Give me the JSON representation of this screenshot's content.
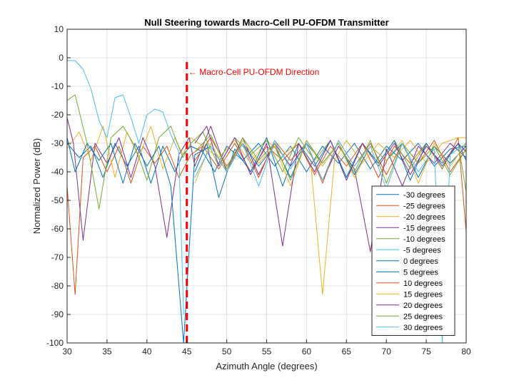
{
  "chart_data": {
    "type": "line",
    "title": "Null Steering towards Macro-Cell PU-OFDM Transmitter",
    "xlabel": "Azimuth Angle (degrees)",
    "ylabel": "Normalized Power (dB)",
    "xlim": [
      30,
      80
    ],
    "ylim": [
      -100,
      10
    ],
    "xticks": [
      30,
      35,
      40,
      45,
      50,
      55,
      60,
      65,
      70,
      75,
      80
    ],
    "yticks": [
      10,
      0,
      -10,
      -20,
      -30,
      -40,
      -50,
      -60,
      -70,
      -80,
      -90,
      -100
    ],
    "grid": true,
    "legend_position": "bottom-right",
    "null_marker": {
      "x": 45,
      "y_range": [
        -100,
        0
      ],
      "color": "#ff0000",
      "style": "dashed"
    },
    "annotation": {
      "text": "← Macro-Cell PU-OFDM Direction",
      "x": 45.2,
      "y": -5,
      "color": "#ff0000"
    },
    "series": [
      {
        "name": "-30 degrees",
        "color": "#0072BD",
        "x": [
          30,
          31.5,
          33,
          34.5,
          36,
          37.5,
          39,
          40.5,
          42,
          43.5,
          44.5,
          45.5,
          47,
          48.5,
          50,
          52,
          54,
          56,
          58,
          60,
          62,
          64,
          66,
          68,
          70,
          72,
          74,
          76,
          78,
          80
        ],
        "y": [
          -30,
          -35,
          -31,
          -42,
          -30,
          -38,
          -31,
          -44,
          -31,
          -40,
          -34,
          -31,
          -33,
          -40,
          -31,
          -36,
          -30,
          -38,
          -31,
          -40,
          -31,
          -37,
          -30,
          -39,
          -31,
          -36,
          -30,
          -38,
          -32,
          -31
        ]
      },
      {
        "name": "-25 degrees",
        "color": "#D95319",
        "x": [
          30,
          31,
          32,
          33.5,
          35,
          36.5,
          38,
          39.5,
          41,
          42.5,
          44,
          45.5,
          47,
          49,
          51,
          53,
          55,
          57,
          59,
          61,
          63,
          65,
          67,
          69,
          71,
          73,
          75,
          77,
          79,
          80
        ],
        "y": [
          -45,
          -83,
          -35,
          -31,
          -40,
          -31,
          -44,
          -31,
          -37,
          -31,
          -42,
          -34,
          -31,
          -39,
          -30,
          -40,
          -31,
          -36,
          -30,
          -41,
          -31,
          -38,
          -30,
          -42,
          -31,
          -37,
          -30,
          -39,
          -28,
          -61
        ]
      },
      {
        "name": "-20 degrees",
        "color": "#EDB120",
        "x": [
          30,
          31.5,
          33,
          34.5,
          36,
          37.5,
          39,
          40.5,
          42,
          43.5,
          44.5,
          45.5,
          47,
          49,
          51,
          53,
          55,
          57,
          59,
          60.5,
          62,
          63.5,
          65,
          67,
          69,
          71,
          73,
          75,
          77,
          79,
          80
        ],
        "y": [
          -32,
          -26,
          -36,
          -24,
          -42,
          -26,
          -35,
          -24,
          -39,
          -28,
          -34,
          -28,
          -31,
          -35,
          -29,
          -37,
          -29,
          -34,
          -30,
          -36,
          -83,
          -36,
          -29,
          -37,
          -30,
          -35,
          -29,
          -37,
          -30,
          -28,
          -28
        ]
      },
      {
        "name": "-15 degrees",
        "color": "#7E2F8E",
        "x": [
          30,
          30.8,
          32,
          33.5,
          35,
          36.5,
          38,
          39.5,
          41,
          42.5,
          44,
          45.3,
          46,
          48,
          50,
          52,
          54,
          56,
          58,
          60,
          62,
          64,
          66,
          68,
          70,
          72,
          74,
          76,
          78,
          80
        ],
        "y": [
          -21,
          -30,
          -64,
          -30,
          -37,
          -28,
          -42,
          -28,
          -38,
          -63,
          -34,
          -28,
          -38,
          -24,
          -40,
          -28,
          -41,
          -30,
          -38,
          -30,
          -43,
          -31,
          -39,
          -68,
          -32,
          -45,
          -31,
          -37,
          -30,
          -35
        ]
      },
      {
        "name": "-10 degrees",
        "color": "#77AC30",
        "x": [
          30,
          31,
          32.5,
          34,
          35.5,
          37,
          38.5,
          40,
          41.5,
          43,
          44.5,
          45.5,
          47,
          49,
          51,
          53,
          55,
          57,
          59,
          61,
          63,
          65,
          67,
          69,
          71,
          73,
          75,
          77,
          79,
          80
        ],
        "y": [
          -15,
          -13,
          -30,
          -53,
          -28,
          -24,
          -31,
          -43,
          -28,
          -24,
          -35,
          -30,
          -26,
          -38,
          -28,
          -34,
          -29,
          -40,
          -28,
          -36,
          -29,
          -42,
          -30,
          -37,
          -29,
          -39,
          -30,
          -38,
          -30,
          -47
        ]
      },
      {
        "name": "-5 degrees",
        "color": "#4DBEEE",
        "x": [
          30,
          31,
          32,
          33,
          34,
          35,
          36,
          37,
          38,
          39,
          40,
          41,
          42,
          43,
          44,
          44.6
        ],
        "y": [
          -1,
          -1,
          -4,
          -11,
          -22,
          -28,
          -14,
          -13,
          -21,
          -30,
          -20,
          -18,
          -19,
          -27,
          -33,
          -90
        ]
      },
      {
        "name": "0 degrees",
        "color": "#0072BD",
        "x": [
          30,
          31,
          32.5,
          34,
          35.5,
          37,
          38.5,
          40,
          41.5,
          43,
          44.6,
          46,
          48,
          50,
          52,
          54,
          56,
          58,
          60,
          62,
          64,
          66,
          68,
          70,
          72,
          74,
          76,
          78,
          80
        ],
        "y": [
          -28,
          -40,
          -30,
          -36,
          -30,
          -44,
          -30,
          -38,
          -31,
          -45,
          -100,
          -34,
          -31,
          -40,
          -30,
          -38,
          -31,
          -42,
          -30,
          -37,
          -30,
          -41,
          -31,
          -36,
          -30,
          -42,
          -31,
          -37,
          -31
        ]
      },
      {
        "name": "5 degrees",
        "color": "#0072BD",
        "x": [
          46,
          47.5,
          49,
          51,
          53,
          55,
          57,
          59,
          61,
          63,
          65,
          67,
          69,
          71,
          73,
          75,
          77,
          79,
          80
        ],
        "y": [
          -40,
          -30,
          -49,
          -32,
          -40,
          -28,
          -45,
          -30,
          -38,
          -29,
          -42,
          -30,
          -37,
          -29,
          -43,
          -30,
          -38,
          -30,
          -36
        ]
      },
      {
        "name": "10 degrees",
        "color": "#D95319",
        "x": [
          46,
          48,
          50,
          52,
          54,
          56,
          58,
          60,
          62,
          64,
          66,
          68,
          70,
          72,
          74,
          76,
          78,
          80
        ],
        "y": [
          -36,
          -28,
          -38,
          -30,
          -42,
          -29,
          -36,
          -30,
          -44,
          -29,
          -38,
          -30,
          -41,
          -30,
          -37,
          -29,
          -40,
          -32
        ]
      },
      {
        "name": "15 degrees",
        "color": "#EDB120",
        "x": [
          46,
          48,
          50,
          52,
          54,
          56,
          58,
          60,
          62,
          64,
          66,
          68,
          70,
          72,
          74,
          76,
          78,
          80
        ],
        "y": [
          -44,
          -30,
          -40,
          -29,
          -37,
          -31,
          -45,
          -29,
          -38,
          -30,
          -42,
          -31,
          -36,
          -29,
          -44,
          -30,
          -38,
          -30
        ]
      },
      {
        "name": "20 degrees",
        "color": "#7E2F8E",
        "x": [
          46,
          47.5,
          49,
          51,
          53,
          55,
          57,
          59,
          61,
          63,
          65,
          67,
          69,
          71,
          73,
          75,
          77,
          79,
          80
        ],
        "y": [
          -30,
          -24,
          -38,
          -28,
          -41,
          -30,
          -66,
          -30,
          -40,
          -29,
          -43,
          -30,
          -38,
          -30,
          -41,
          -31,
          -37,
          -30,
          -33
        ]
      },
      {
        "name": "25 degrees",
        "color": "#77AC30",
        "x": [
          46,
          48,
          50,
          52,
          54,
          56,
          58,
          60,
          62,
          64,
          66,
          68,
          70,
          72,
          74,
          76,
          78,
          80
        ],
        "y": [
          -33,
          -27,
          -39,
          -28,
          -36,
          -30,
          -43,
          -29,
          -37,
          -30,
          -40,
          -29,
          -44,
          -30,
          -37,
          -31,
          -41,
          -32
        ]
      },
      {
        "name": "30 degrees",
        "color": "#4DBEEE",
        "x": [
          46,
          48,
          50,
          52,
          54,
          56,
          58,
          60,
          62,
          64,
          66,
          68,
          70,
          72,
          74,
          76,
          77,
          78,
          80
        ],
        "y": [
          -42,
          -31,
          -40,
          -30,
          -45,
          -29,
          -39,
          -30,
          -43,
          -29,
          -38,
          -31,
          -46,
          -30,
          -40,
          -32,
          -100,
          -34,
          -30
        ]
      }
    ]
  }
}
